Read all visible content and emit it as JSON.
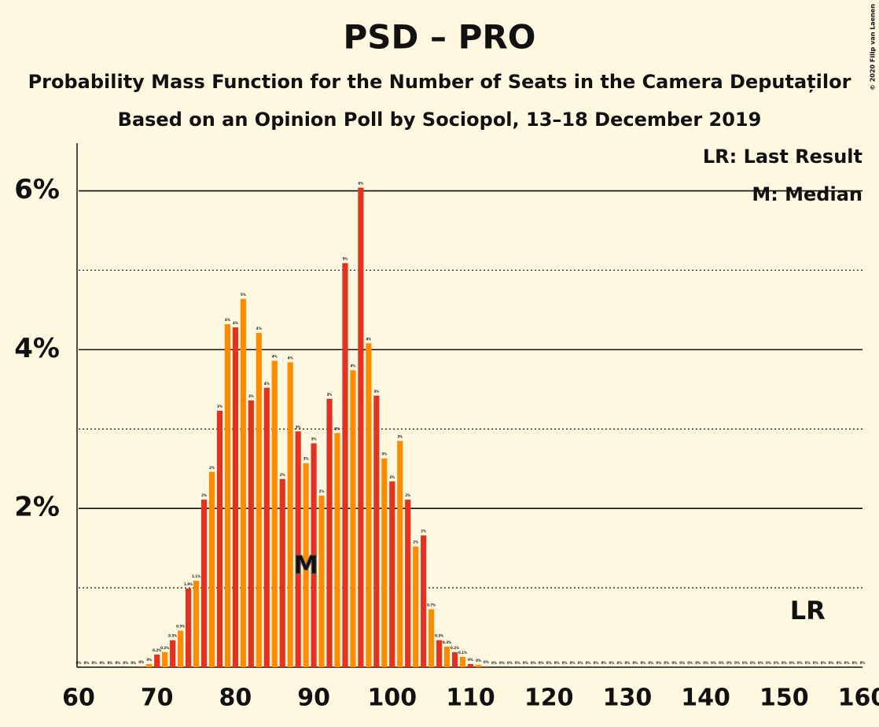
{
  "chart_data": {
    "type": "bar",
    "title": "PSD – PRO",
    "subtitle": "Probability Mass Function for the Number of Seats in the Camera Deputaților",
    "subtitle2": "Based on an Opinion Poll by Sociopol, 13–18 December 2019",
    "credit": "© 2020 Filip van Laenen",
    "legend": [
      "LR: Last Result",
      "M: Median"
    ],
    "median": {
      "x": 89,
      "label": "M"
    },
    "last_result": {
      "x": 153,
      "label": "LR"
    },
    "bar_colors": [
      "#e3321f",
      "#ff8c00"
    ],
    "x": [
      60,
      61,
      62,
      63,
      64,
      65,
      66,
      67,
      68,
      69,
      70,
      71,
      72,
      73,
      74,
      75,
      76,
      77,
      78,
      79,
      80,
      81,
      82,
      83,
      84,
      85,
      86,
      87,
      88,
      89,
      90,
      91,
      92,
      93,
      94,
      95,
      96,
      97,
      98,
      99,
      100,
      101,
      102,
      103,
      104,
      105,
      106,
      107,
      108,
      109,
      110,
      111,
      112,
      113,
      114,
      115,
      116,
      117,
      118,
      119,
      120,
      121,
      122,
      123,
      124,
      125,
      126,
      127,
      128,
      129,
      130,
      131,
      132,
      133,
      134,
      135,
      136,
      137,
      138,
      139,
      140,
      141,
      142,
      143,
      144,
      145,
      146,
      147,
      148,
      149,
      150,
      151,
      152,
      153,
      154,
      155,
      156,
      157,
      158,
      159,
      160
    ],
    "values": [
      0,
      0,
      0,
      0,
      0,
      0,
      0,
      0,
      0.01,
      0.04,
      0.16,
      0.19,
      0.34,
      0.46,
      0.99,
      1.09,
      2.11,
      2.46,
      3.23,
      4.32,
      4.28,
      4.64,
      3.36,
      4.21,
      3.52,
      3.86,
      2.37,
      3.84,
      2.97,
      2.57,
      2.82,
      2.16,
      3.38,
      2.95,
      5.09,
      3.74,
      6.04,
      4.08,
      3.42,
      2.63,
      2.34,
      2.85,
      2.11,
      1.52,
      1.66,
      0.73,
      0.34,
      0.26,
      0.19,
      0.13,
      0.04,
      0.03,
      0.01,
      0,
      0,
      0,
      0,
      0,
      0,
      0,
      0,
      0,
      0,
      0,
      0,
      0,
      0,
      0,
      0,
      0,
      0,
      0,
      0,
      0,
      0,
      0,
      0,
      0,
      0,
      0,
      0,
      0,
      0,
      0,
      0,
      0,
      0,
      0,
      0,
      0,
      0,
      0,
      0,
      0,
      0,
      0,
      0,
      0,
      0,
      0,
      0
    ],
    "value_labels": [
      "0%",
      "0%",
      "0%",
      "0%",
      "0%",
      "0%",
      "0%",
      "0%",
      "0%",
      "0%",
      "0.2%",
      "0.2%",
      "0.3%",
      "0.5%",
      "1.0%",
      "1.1%",
      "2%",
      "2%",
      "3%",
      "4%",
      "4%",
      "5%",
      "3%",
      "4%",
      "4%",
      "4%",
      "2%",
      "4%",
      "3%",
      "3%",
      "3%",
      "2%",
      "3%",
      "3%",
      "5%",
      "4%",
      "6%",
      "4%",
      "3%",
      "3%",
      "2%",
      "3%",
      "2%",
      "2%",
      "2%",
      "0.7%",
      "0.3%",
      "0.3%",
      "0.2%",
      "0.1%",
      "0%",
      "0%",
      "0%",
      "0%",
      "0%",
      "0%",
      "0%",
      "0%",
      "0%",
      "0%",
      "0%",
      "0%",
      "0%",
      "0%",
      "0%",
      "0%",
      "0%",
      "0%",
      "0%",
      "0%",
      "0%",
      "0%",
      "0%",
      "0%",
      "0%",
      "0%",
      "0%",
      "0%",
      "0%",
      "0%",
      "0%",
      "0%",
      "0%",
      "0%",
      "0%",
      "0%",
      "0%",
      "0%",
      "0%",
      "0%",
      "0%",
      "0%",
      "0%",
      "0%",
      "0%",
      "0%",
      "0%",
      "0%",
      "0%",
      "0%",
      "0%"
    ],
    "xlim": [
      60,
      160
    ],
    "xticks": [
      60,
      70,
      80,
      90,
      100,
      110,
      120,
      130,
      140,
      150,
      160
    ],
    "ylim": [
      0,
      6.6
    ],
    "yticks": [
      {
        "value": 2,
        "label": "2%"
      },
      {
        "value": 4,
        "label": "4%"
      },
      {
        "value": 6,
        "label": "6%"
      }
    ],
    "minor_yticks": [
      1,
      3,
      5
    ]
  }
}
